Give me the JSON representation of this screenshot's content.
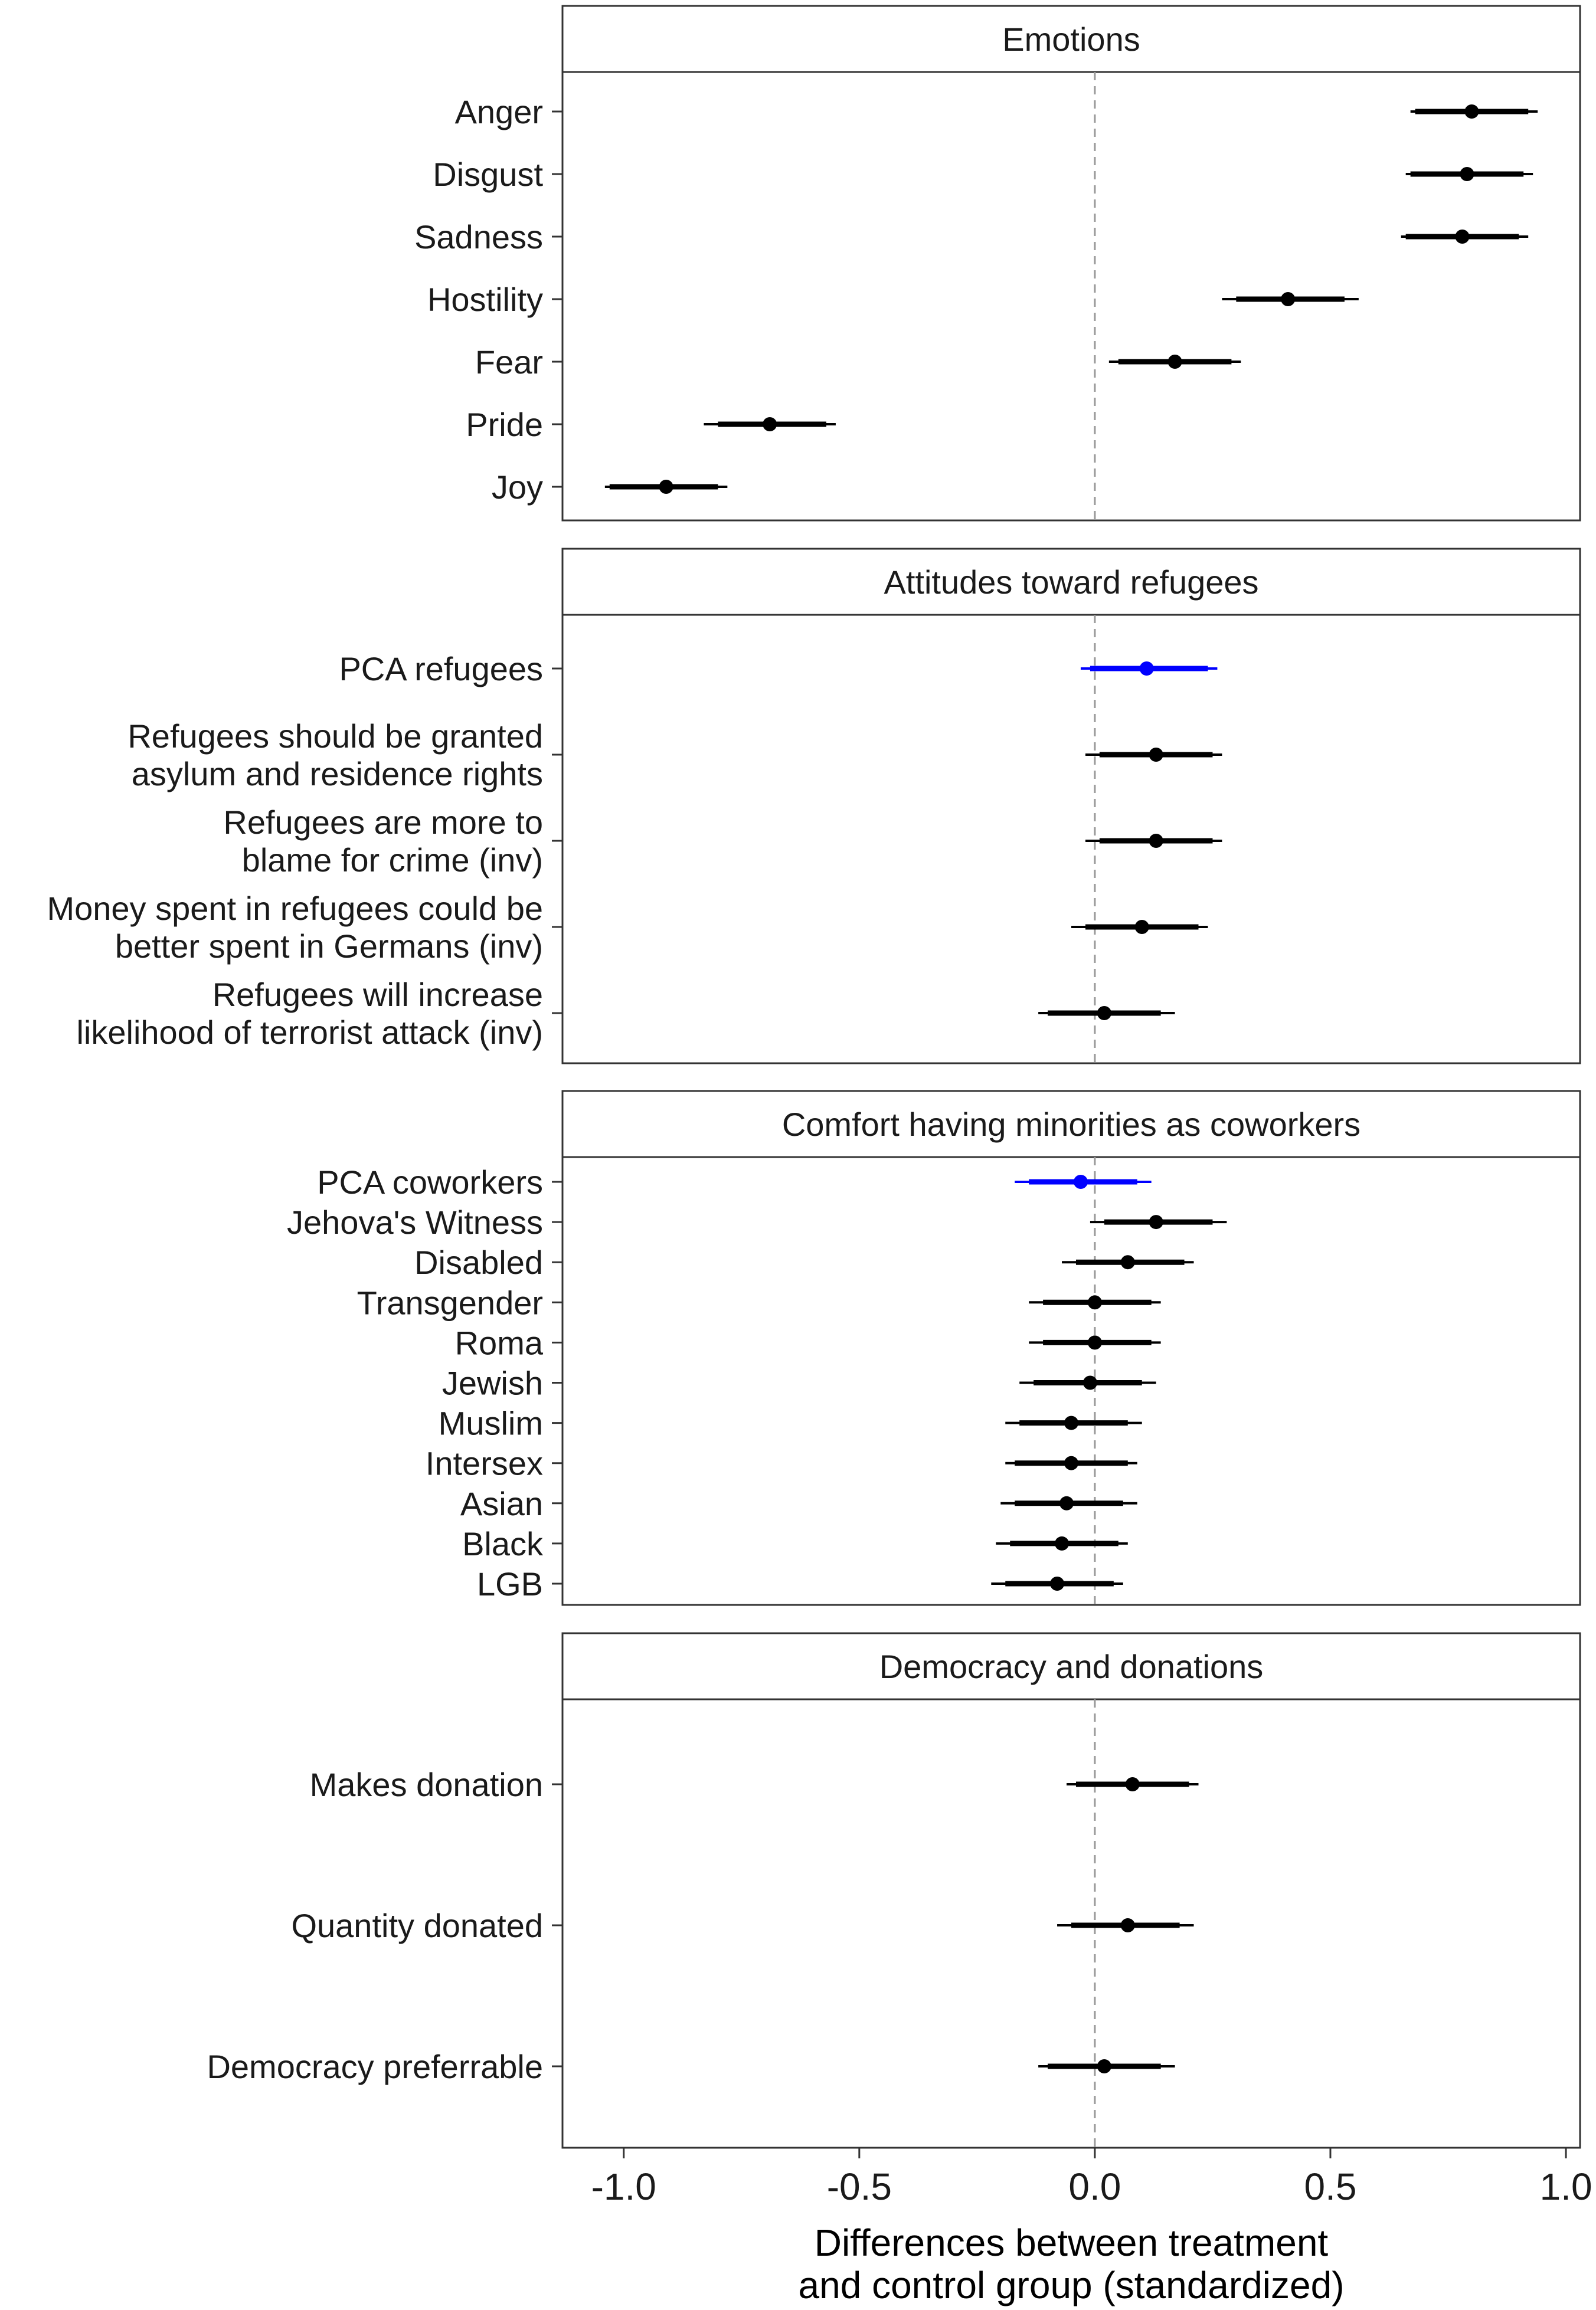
{
  "chart_data": {
    "type": "coefficient_plot",
    "xlabel": [
      "Differences between treatment",
      "and control group (standardized)"
    ],
    "xlim": [
      -1.13,
      1.03
    ],
    "xticks": [
      -1.0,
      -0.5,
      0.0,
      0.5,
      1.0
    ],
    "xtick_labels": [
      "-1.0",
      "-0.5",
      "0.0",
      "0.5",
      "1.0"
    ],
    "reference_line": 0,
    "colors": {
      "default": "#000000",
      "pca": "#0000ff",
      "border": "#333333",
      "refline": "#999999"
    },
    "panels": [
      {
        "title": "Emotions",
        "items": [
          {
            "label": [
              "Anger"
            ],
            "estimate": 0.8,
            "ci90": [
              0.68,
              0.92
            ],
            "ci95": [
              0.67,
              0.94
            ],
            "pca": false
          },
          {
            "label": [
              "Disgust"
            ],
            "estimate": 0.79,
            "ci90": [
              0.67,
              0.91
            ],
            "ci95": [
              0.66,
              0.93
            ],
            "pca": false
          },
          {
            "label": [
              "Sadness"
            ],
            "estimate": 0.78,
            "ci90": [
              0.66,
              0.9
            ],
            "ci95": [
              0.65,
              0.92
            ],
            "pca": false
          },
          {
            "label": [
              "Hostility"
            ],
            "estimate": 0.41,
            "ci90": [
              0.3,
              0.53
            ],
            "ci95": [
              0.27,
              0.56
            ],
            "pca": false
          },
          {
            "label": [
              "Fear"
            ],
            "estimate": 0.17,
            "ci90": [
              0.05,
              0.29
            ],
            "ci95": [
              0.03,
              0.31
            ],
            "pca": false
          },
          {
            "label": [
              "Pride"
            ],
            "estimate": -0.69,
            "ci90": [
              -0.8,
              -0.57
            ],
            "ci95": [
              -0.83,
              -0.55
            ],
            "pca": false
          },
          {
            "label": [
              "Joy"
            ],
            "estimate": -0.91,
            "ci90": [
              -1.03,
              -0.8
            ],
            "ci95": [
              -1.04,
              -0.78
            ],
            "pca": false
          }
        ]
      },
      {
        "title": "Attitudes toward refugees",
        "items": [
          {
            "label": [
              "PCA refugees"
            ],
            "estimate": 0.11,
            "ci90": [
              -0.01,
              0.24
            ],
            "ci95": [
              -0.03,
              0.26
            ],
            "pca": true
          },
          {
            "label": [
              "Refugees should be granted",
              "asylum and residence rights"
            ],
            "estimate": 0.13,
            "ci90": [
              0.01,
              0.25
            ],
            "ci95": [
              -0.02,
              0.27
            ],
            "pca": false
          },
          {
            "label": [
              "Refugees are more to",
              "blame for crime (inv)"
            ],
            "estimate": 0.13,
            "ci90": [
              0.01,
              0.25
            ],
            "ci95": [
              -0.02,
              0.27
            ],
            "pca": false
          },
          {
            "label": [
              "Money spent in refugees could be",
              "better spent in Germans (inv)"
            ],
            "estimate": 0.1,
            "ci90": [
              -0.02,
              0.22
            ],
            "ci95": [
              -0.05,
              0.24
            ],
            "pca": false
          },
          {
            "label": [
              "Refugees will increase",
              "likelihood of terrorist attack (inv)"
            ],
            "estimate": 0.02,
            "ci90": [
              -0.1,
              0.14
            ],
            "ci95": [
              -0.12,
              0.17
            ],
            "pca": false
          }
        ]
      },
      {
        "title": "Comfort having minorities as coworkers",
        "items": [
          {
            "label": [
              "PCA coworkers"
            ],
            "estimate": -0.03,
            "ci90": [
              -0.14,
              0.09
            ],
            "ci95": [
              -0.17,
              0.12
            ],
            "pca": true
          },
          {
            "label": [
              "Jehova's Witness"
            ],
            "estimate": 0.13,
            "ci90": [
              0.02,
              0.25
            ],
            "ci95": [
              -0.01,
              0.28
            ],
            "pca": false
          },
          {
            "label": [
              "Disabled"
            ],
            "estimate": 0.07,
            "ci90": [
              -0.04,
              0.19
            ],
            "ci95": [
              -0.07,
              0.21
            ],
            "pca": false
          },
          {
            "label": [
              "Transgender"
            ],
            "estimate": 0.0,
            "ci90": [
              -0.11,
              0.12
            ],
            "ci95": [
              -0.14,
              0.14
            ],
            "pca": false
          },
          {
            "label": [
              "Roma"
            ],
            "estimate": 0.0,
            "ci90": [
              -0.11,
              0.12
            ],
            "ci95": [
              -0.14,
              0.14
            ],
            "pca": false
          },
          {
            "label": [
              "Jewish"
            ],
            "estimate": -0.01,
            "ci90": [
              -0.13,
              0.1
            ],
            "ci95": [
              -0.16,
              0.13
            ],
            "pca": false
          },
          {
            "label": [
              "Muslim"
            ],
            "estimate": -0.05,
            "ci90": [
              -0.16,
              0.07
            ],
            "ci95": [
              -0.19,
              0.1
            ],
            "pca": false
          },
          {
            "label": [
              "Intersex"
            ],
            "estimate": -0.05,
            "ci90": [
              -0.17,
              0.07
            ],
            "ci95": [
              -0.19,
              0.09
            ],
            "pca": false
          },
          {
            "label": [
              "Asian"
            ],
            "estimate": -0.06,
            "ci90": [
              -0.17,
              0.06
            ],
            "ci95": [
              -0.2,
              0.09
            ],
            "pca": false
          },
          {
            "label": [
              "Black"
            ],
            "estimate": -0.07,
            "ci90": [
              -0.18,
              0.05
            ],
            "ci95": [
              -0.21,
              0.07
            ],
            "pca": false
          },
          {
            "label": [
              "LGB"
            ],
            "estimate": -0.08,
            "ci90": [
              -0.19,
              0.04
            ],
            "ci95": [
              -0.22,
              0.06
            ],
            "pca": false
          }
        ]
      },
      {
        "title": "Democracy and donations",
        "items": [
          {
            "label": [
              "Makes donation"
            ],
            "estimate": 0.08,
            "ci90": [
              -0.04,
              0.2
            ],
            "ci95": [
              -0.06,
              0.22
            ],
            "pca": false
          },
          {
            "label": [
              "Quantity donated"
            ],
            "estimate": 0.07,
            "ci90": [
              -0.05,
              0.18
            ],
            "ci95": [
              -0.08,
              0.21
            ],
            "pca": false
          },
          {
            "label": [
              "Democracy preferrable"
            ],
            "estimate": 0.02,
            "ci90": [
              -0.1,
              0.14
            ],
            "ci95": [
              -0.12,
              0.17
            ],
            "pca": false
          }
        ]
      }
    ]
  }
}
